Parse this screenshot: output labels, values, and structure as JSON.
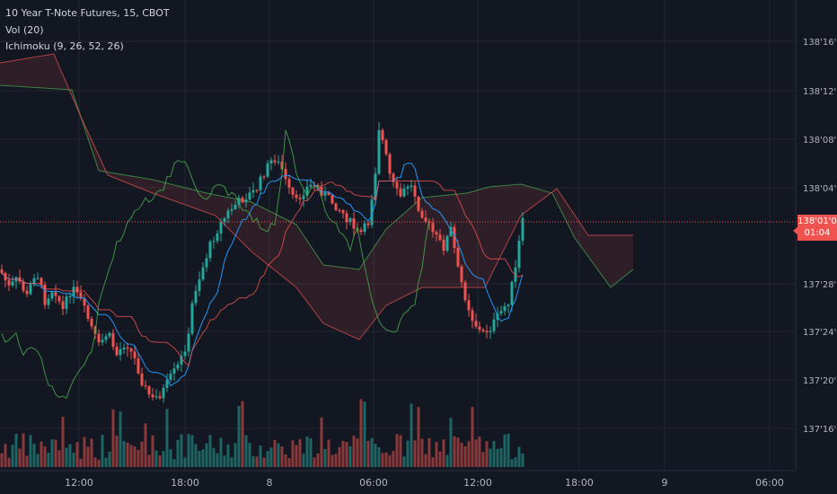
{
  "legend": {
    "symbol": "10 Year T-Note Futures, 15, CBOT",
    "volume": "Vol (20)",
    "ichimoku": "Ichimoku (9, 26, 52, 26)"
  },
  "price_axis": {
    "ticks": [
      "138'16'0",
      "138'12'0",
      "138'08'0",
      "138'04'0",
      "137'28'0",
      "137'24'0",
      "137'20'0",
      "137'16'0"
    ],
    "current_price": "138'01'0",
    "countdown": "01:04"
  },
  "time_axis": {
    "ticks": [
      "12:00",
      "18:00",
      "8",
      "06:00",
      "12:00",
      "18:00",
      "9",
      "06:00"
    ]
  },
  "colors": {
    "background": "#131722",
    "grid": "#242733",
    "up": "#26a69a",
    "down": "#ef5350",
    "tenkan": "#2196f3",
    "kijun": "#ef5350",
    "chikou": "#4caf50",
    "cloud_bull": "#4caf50",
    "cloud_bear": "#ef5350"
  }
}
